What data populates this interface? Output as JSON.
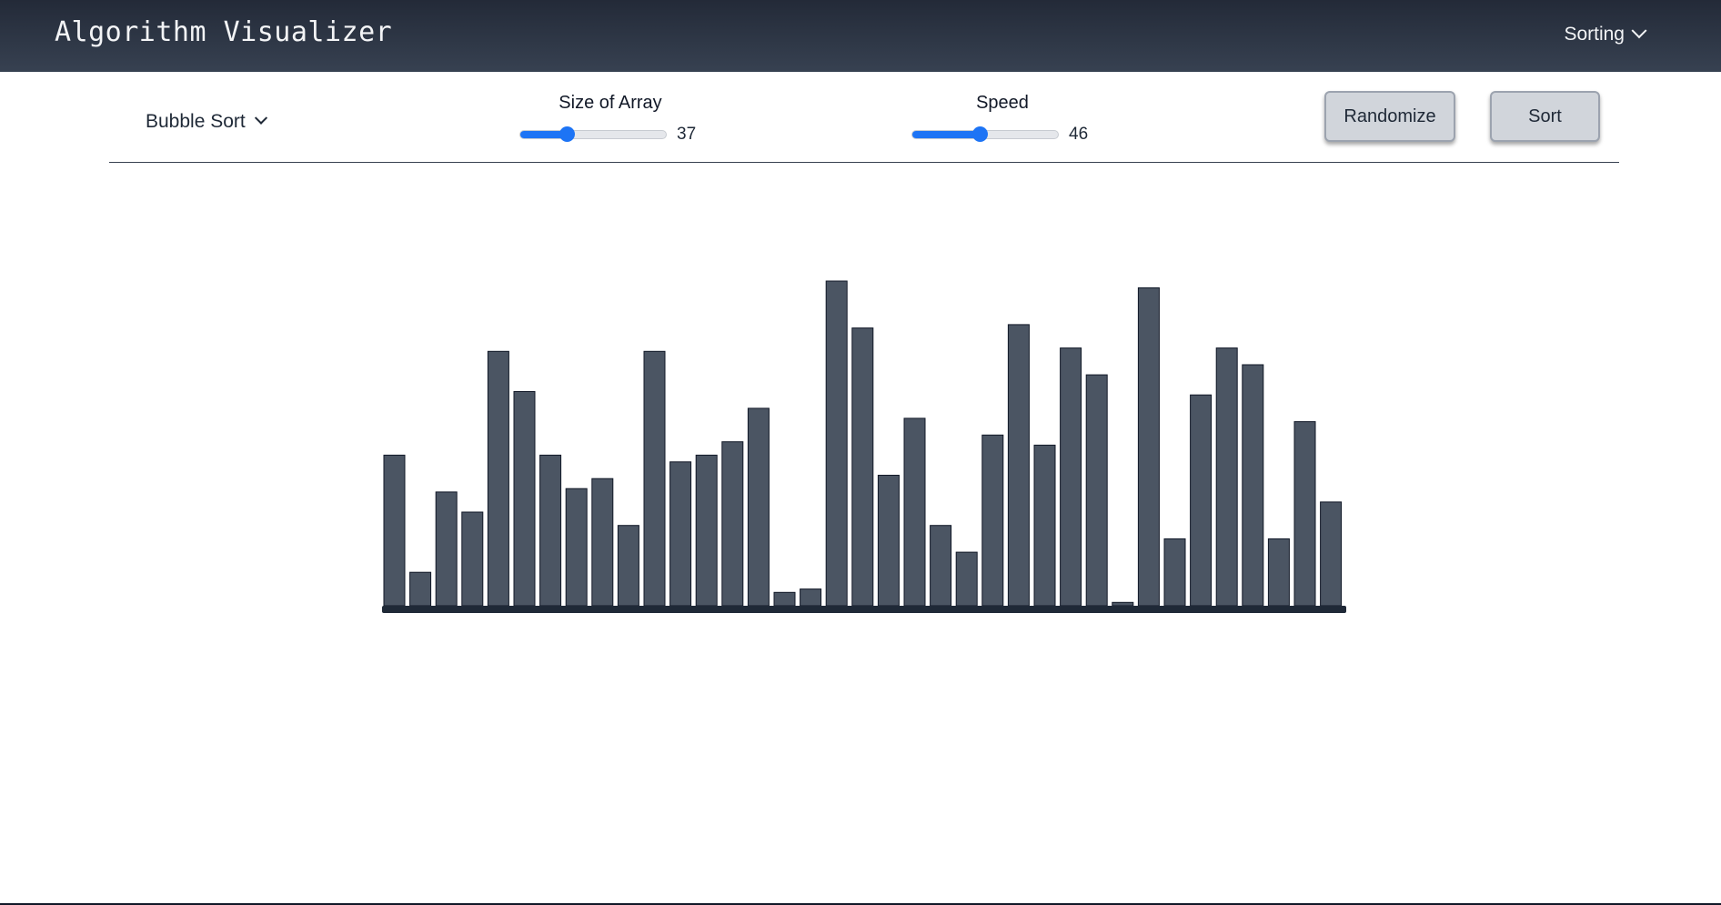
{
  "navbar": {
    "brand": "Algorithm Visualizer",
    "menu_label": "Sorting",
    "menu_icon": "chevron-down-icon"
  },
  "controls": {
    "algorithm": {
      "selected": "Bubble Sort",
      "icon": "chevron-down-icon"
    },
    "size": {
      "label": "Size of Array",
      "value": "37",
      "fraction": 0.32
    },
    "speed": {
      "label": "Speed",
      "value": "46",
      "fraction": 0.46
    },
    "randomize_label": "Randomize",
    "sort_label": "Sort"
  },
  "colors": {
    "navbar": "#2d3442",
    "bar": "#4b5563",
    "bar_outline": "#111827",
    "baseline": "#1f2937",
    "slider_accent": "#1d74f5",
    "button": "#d1d5db"
  },
  "chart_data": {
    "type": "bar",
    "title": "",
    "xlabel": "",
    "ylabel": "",
    "ylim": [
      0,
      100
    ],
    "values": [
      45,
      10,
      34,
      28,
      76,
      64,
      45,
      35,
      38,
      24,
      76,
      43,
      45,
      49,
      59,
      4,
      5,
      97,
      83,
      39,
      56,
      24,
      16,
      51,
      84,
      48,
      77,
      69,
      1,
      95,
      20,
      63,
      77,
      72,
      20,
      55,
      31
    ]
  }
}
